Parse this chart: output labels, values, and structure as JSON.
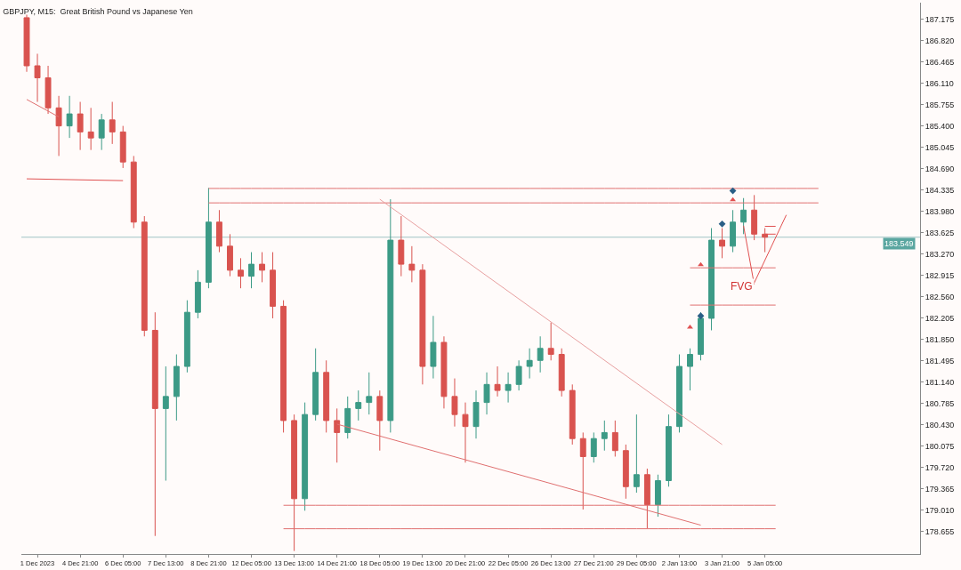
{
  "chart_data": {
    "type": "candlestick",
    "title": "GBPJPY, M15:  Great British Pound vs Japanese Yen",
    "categories": [
      null,
      "1 Dec 2023",
      null,
      null,
      null,
      "4 Dec 21:00",
      null,
      null,
      null,
      "6 Dec 05:00",
      null,
      null,
      null,
      "7 Dec 13:00",
      null,
      null,
      null,
      "8 Dec 21:00",
      null,
      null,
      null,
      "12 Dec 05:00",
      null,
      null,
      null,
      "13 Dec 13:00",
      null,
      null,
      null,
      "14 Dec 21:00",
      null,
      null,
      null,
      "18 Dec 05:00",
      null,
      null,
      null,
      "19 Dec 13:00",
      null,
      null,
      null,
      "20 Dec 21:00",
      null,
      null,
      null,
      "22 Dec 05:00",
      null,
      null,
      null,
      "26 Dec 13:00",
      null,
      null,
      null,
      "27 Dec 21:00",
      null,
      null,
      null,
      "29 Dec 05:00",
      null,
      null,
      null,
      "2 Jan 13:00",
      null,
      null,
      null,
      "3 Jan 21:00",
      null,
      null,
      null,
      "5 Jan 05:00",
      null,
      null,
      null,
      null,
      null,
      null,
      null,
      null,
      null,
      null,
      null,
      null,
      null,
      null
    ],
    "ohlc": [
      [
        187.2,
        187.25,
        186.3,
        186.4
      ],
      [
        186.4,
        186.6,
        185.8,
        186.2
      ],
      [
        186.2,
        186.4,
        185.6,
        185.7
      ],
      [
        185.7,
        185.9,
        184.9,
        185.4
      ],
      [
        185.4,
        185.9,
        185.2,
        185.6
      ],
      [
        185.6,
        185.8,
        185.0,
        185.3
      ],
      [
        185.3,
        185.7,
        185.0,
        185.2
      ],
      [
        185.2,
        185.6,
        185.0,
        185.5
      ],
      [
        185.5,
        185.8,
        185.1,
        185.3
      ],
      [
        185.3,
        185.4,
        184.7,
        184.8
      ],
      [
        184.8,
        184.9,
        183.7,
        183.8
      ],
      [
        183.8,
        183.9,
        181.9,
        182.0
      ],
      [
        182.0,
        182.3,
        178.58,
        180.7
      ],
      [
        180.7,
        181.4,
        179.5,
        180.9
      ],
      [
        180.9,
        181.6,
        180.5,
        181.4
      ],
      [
        181.4,
        182.5,
        181.3,
        182.3
      ],
      [
        182.3,
        183.0,
        182.2,
        182.8
      ],
      [
        182.8,
        184.37,
        182.7,
        183.8
      ],
      [
        183.8,
        184.0,
        183.3,
        183.4
      ],
      [
        183.4,
        183.6,
        182.9,
        183.0
      ],
      [
        183.0,
        183.2,
        182.7,
        182.9
      ],
      [
        182.9,
        183.3,
        182.7,
        183.1
      ],
      [
        183.1,
        183.3,
        182.8,
        183.0
      ],
      [
        183.0,
        183.3,
        182.2,
        182.4
      ],
      [
        182.4,
        182.5,
        180.3,
        180.5
      ],
      [
        180.5,
        180.6,
        178.33,
        179.2
      ],
      [
        179.2,
        180.8,
        179.0,
        180.6
      ],
      [
        180.6,
        181.7,
        180.5,
        181.3
      ],
      [
        181.3,
        181.5,
        180.3,
        180.5
      ],
      [
        180.5,
        180.7,
        179.8,
        180.3
      ],
      [
        180.3,
        180.9,
        180.2,
        180.7
      ],
      [
        180.7,
        181.0,
        180.5,
        180.8
      ],
      [
        180.8,
        181.3,
        180.6,
        180.9
      ],
      [
        180.9,
        181.0,
        180.0,
        180.5
      ],
      [
        180.5,
        184.18,
        180.3,
        183.5
      ],
      [
        183.5,
        183.9,
        182.9,
        183.1
      ],
      [
        183.1,
        183.4,
        182.8,
        183.0
      ],
      [
        183.0,
        183.1,
        181.1,
        181.4
      ],
      [
        181.4,
        182.24,
        181.2,
        181.8
      ],
      [
        181.8,
        181.9,
        180.7,
        180.9
      ],
      [
        180.9,
        181.2,
        180.4,
        180.6
      ],
      [
        180.6,
        180.8,
        179.8,
        180.4
      ],
      [
        180.4,
        181.0,
        180.2,
        180.8
      ],
      [
        180.8,
        181.3,
        180.6,
        181.1
      ],
      [
        181.1,
        181.4,
        180.9,
        181.0
      ],
      [
        181.0,
        181.3,
        180.8,
        181.1
      ],
      [
        181.1,
        181.5,
        181.0,
        181.4
      ],
      [
        181.4,
        181.7,
        181.2,
        181.5
      ],
      [
        181.5,
        181.9,
        181.3,
        181.7
      ],
      [
        181.7,
        182.13,
        181.5,
        181.6
      ],
      [
        181.6,
        181.7,
        180.9,
        181.0
      ],
      [
        181.0,
        181.1,
        180.1,
        180.2
      ],
      [
        180.2,
        180.3,
        179.02,
        179.9
      ],
      [
        179.9,
        180.3,
        179.8,
        180.2
      ],
      [
        180.2,
        180.5,
        180.0,
        180.3
      ],
      [
        180.3,
        180.5,
        179.9,
        180.0
      ],
      [
        180.0,
        180.1,
        179.2,
        179.4
      ],
      [
        179.4,
        180.6,
        179.3,
        179.6
      ],
      [
        179.6,
        179.7,
        178.7,
        179.1
      ],
      [
        179.1,
        179.6,
        178.9,
        179.5
      ],
      [
        179.5,
        180.6,
        179.4,
        180.4
      ],
      [
        180.4,
        181.6,
        180.3,
        181.4
      ],
      [
        181.4,
        181.7,
        181.0,
        181.6
      ],
      [
        181.6,
        182.3,
        181.5,
        182.2
      ],
      [
        182.2,
        183.7,
        182.0,
        183.5
      ],
      [
        183.5,
        183.7,
        183.2,
        183.4
      ],
      [
        183.4,
        184.0,
        183.3,
        183.8
      ],
      [
        183.8,
        184.2,
        183.6,
        184.0
      ],
      [
        184.0,
        184.25,
        183.5,
        183.6
      ],
      [
        183.6,
        183.7,
        183.3,
        183.549
      ],
      null,
      null,
      null,
      null,
      null,
      null,
      null,
      null,
      null,
      null,
      null,
      null,
      null,
      null
    ],
    "series": [
      {
        "type": "line",
        "color": "#e07070",
        "values": [
          null,
          null,
          null,
          null,
          null,
          null,
          null,
          null,
          null,
          null,
          null,
          null,
          null,
          null,
          null,
          null,
          null,
          184.36,
          184.36,
          184.36,
          184.36,
          184.36,
          184.36,
          184.36,
          184.36,
          184.36,
          184.36,
          184.36,
          184.36,
          184.36,
          184.36,
          184.36,
          184.36,
          184.36,
          184.36,
          184.36,
          184.36,
          184.36,
          184.36,
          184.36,
          184.36,
          184.36,
          184.36,
          184.36,
          184.36,
          184.36,
          184.36,
          184.36,
          184.36,
          184.36,
          184.36,
          184.36,
          184.36,
          184.36,
          184.36,
          184.36,
          184.36,
          184.36,
          184.36,
          184.36,
          184.36,
          184.36,
          184.36,
          184.36,
          184.36,
          184.36,
          184.36,
          184.36,
          184.36,
          184.36,
          184.36,
          184.36,
          184.36,
          184.36,
          184.36,
          null,
          null,
          null,
          null,
          null,
          null,
          null,
          null,
          null
        ]
      },
      {
        "type": "line",
        "color": "#e07070",
        "values": [
          null,
          null,
          null,
          null,
          null,
          null,
          null,
          null,
          null,
          null,
          null,
          null,
          null,
          null,
          null,
          null,
          null,
          184.12,
          184.12,
          184.12,
          184.12,
          184.12,
          184.12,
          184.12,
          184.12,
          184.12,
          184.12,
          184.12,
          184.12,
          184.12,
          184.12,
          184.12,
          184.12,
          184.12,
          184.12,
          184.12,
          184.12,
          184.12,
          184.12,
          184.12,
          184.12,
          184.12,
          184.12,
          184.12,
          184.12,
          184.12,
          184.12,
          184.12,
          184.12,
          184.12,
          184.12,
          184.12,
          184.12,
          184.12,
          184.12,
          184.12,
          184.12,
          184.12,
          184.12,
          184.12,
          184.12,
          184.12,
          184.12,
          184.12,
          184.12,
          184.12,
          184.12,
          184.12,
          184.12,
          184.12,
          184.12,
          184.12,
          184.12,
          184.12,
          184.12,
          null,
          null,
          null,
          null,
          null,
          null,
          null,
          null,
          null
        ]
      },
      {
        "type": "line",
        "color": "#e07070",
        "values": [
          null,
          null,
          null,
          null,
          null,
          null,
          null,
          null,
          null,
          null,
          null,
          null,
          null,
          null,
          null,
          null,
          null,
          null,
          null,
          null,
          null,
          null,
          null,
          null,
          179.09,
          179.09,
          179.09,
          179.09,
          179.09,
          179.09,
          179.09,
          179.09,
          179.09,
          179.09,
          179.09,
          179.09,
          179.09,
          179.09,
          179.09,
          179.09,
          179.09,
          179.09,
          179.09,
          179.09,
          179.09,
          179.09,
          179.09,
          179.09,
          179.09,
          179.09,
          179.09,
          179.09,
          179.09,
          179.09,
          179.09,
          179.09,
          179.09,
          179.09,
          179.09,
          179.09,
          179.09,
          179.09,
          179.09,
          179.09,
          179.09,
          179.09,
          179.09,
          179.09,
          179.09,
          179.09,
          179.09,
          null,
          null,
          null,
          null,
          null,
          null,
          null,
          null,
          null,
          null,
          null,
          null,
          null
        ]
      },
      {
        "type": "line",
        "color": "#e07070",
        "values": [
          null,
          null,
          null,
          null,
          null,
          null,
          null,
          null,
          null,
          null,
          null,
          null,
          null,
          null,
          null,
          null,
          null,
          null,
          null,
          null,
          null,
          null,
          null,
          null,
          178.7,
          178.7,
          178.7,
          178.7,
          178.7,
          178.7,
          178.7,
          178.7,
          178.7,
          178.7,
          178.7,
          178.7,
          178.7,
          178.7,
          178.7,
          178.7,
          178.7,
          178.7,
          178.7,
          178.7,
          178.7,
          178.7,
          178.7,
          178.7,
          178.7,
          178.7,
          178.7,
          178.7,
          178.7,
          178.7,
          178.7,
          178.7,
          178.7,
          178.7,
          178.7,
          178.7,
          178.7,
          178.7,
          178.7,
          178.7,
          178.7,
          178.7,
          178.7,
          178.7,
          178.7,
          178.7,
          178.7,
          null,
          null,
          null,
          null,
          null,
          null,
          null,
          null,
          null,
          null,
          null,
          null,
          null
        ]
      },
      {
        "type": "line",
        "color": "#e07070",
        "values": [
          null,
          null,
          null,
          null,
          null,
          null,
          null,
          null,
          null,
          null,
          null,
          null,
          null,
          null,
          null,
          null,
          null,
          null,
          null,
          null,
          null,
          null,
          null,
          null,
          null,
          null,
          null,
          null,
          null,
          null,
          null,
          null,
          null,
          null,
          null,
          null,
          null,
          null,
          null,
          null,
          null,
          null,
          null,
          null,
          null,
          null,
          null,
          null,
          null,
          null,
          null,
          null,
          null,
          null,
          null,
          null,
          null,
          null,
          null,
          null,
          null,
          null,
          183.04,
          183.04,
          183.04,
          183.04,
          183.04,
          183.04,
          183.04,
          183.04,
          183.04,
          null,
          null,
          null,
          null,
          null,
          null,
          null,
          null,
          null,
          null,
          null,
          null,
          null
        ]
      },
      {
        "type": "line",
        "color": "#e07070",
        "values": [
          null,
          null,
          null,
          null,
          null,
          null,
          null,
          null,
          null,
          null,
          null,
          null,
          null,
          null,
          null,
          null,
          null,
          null,
          null,
          null,
          null,
          null,
          null,
          null,
          null,
          null,
          null,
          null,
          null,
          null,
          null,
          null,
          null,
          null,
          null,
          null,
          null,
          null,
          null,
          null,
          null,
          null,
          null,
          null,
          null,
          null,
          null,
          null,
          null,
          null,
          null,
          null,
          null,
          null,
          null,
          null,
          null,
          null,
          null,
          null,
          null,
          null,
          182.42,
          182.42,
          182.42,
          182.42,
          182.42,
          182.42,
          182.42,
          182.42,
          182.42,
          null,
          null,
          null,
          null,
          null,
          null,
          null,
          null,
          null,
          null,
          null,
          null,
          null
        ]
      },
      {
        "type": "line",
        "color": "#e8a0a0",
        "values": [
          null,
          null,
          null,
          null,
          null,
          null,
          null,
          null,
          null,
          null,
          null,
          null,
          null,
          null,
          null,
          null,
          null,
          null,
          null,
          null,
          null,
          null,
          null,
          null,
          null,
          null,
          null,
          null,
          null,
          null,
          null,
          null,
          null,
          184.18,
          null,
          null,
          null,
          null,
          null,
          null,
          null,
          null,
          null,
          null,
          null,
          null,
          null,
          null,
          null,
          null,
          null,
          null,
          null,
          null,
          null,
          null,
          null,
          null,
          null,
          null,
          null,
          null,
          null,
          null,
          null,
          180.1,
          null,
          null,
          null,
          null,
          null,
          null,
          null,
          null,
          null,
          null,
          null,
          null,
          null,
          null,
          null,
          null,
          null,
          null
        ]
      },
      {
        "type": "line",
        "color": "#e07070",
        "values": [
          null,
          null,
          null,
          null,
          null,
          null,
          null,
          null,
          null,
          null,
          null,
          null,
          null,
          null,
          null,
          null,
          null,
          null,
          null,
          null,
          null,
          null,
          null,
          null,
          null,
          null,
          null,
          null,
          null,
          180.44,
          null,
          null,
          null,
          null,
          null,
          null,
          null,
          null,
          null,
          null,
          null,
          null,
          null,
          null,
          null,
          null,
          null,
          null,
          null,
          null,
          null,
          null,
          null,
          null,
          null,
          null,
          null,
          null,
          null,
          null,
          null,
          null,
          null,
          178.76,
          null,
          null,
          null,
          null,
          null,
          null,
          null,
          null,
          null,
          null,
          null,
          null,
          null,
          null,
          null,
          null,
          null,
          null,
          null,
          null
        ]
      },
      {
        "type": "line",
        "color": "#e07070",
        "values": [
          185.84,
          null,
          null,
          185.55,
          null,
          null,
          null,
          null,
          null,
          null,
          null,
          null,
          null,
          null,
          null,
          null,
          null,
          null,
          null,
          null,
          null,
          null,
          null,
          null,
          null,
          null,
          null,
          null,
          null,
          null,
          null,
          null,
          null,
          null,
          null,
          null,
          null,
          null,
          null,
          null,
          null,
          null,
          null,
          null,
          null,
          null,
          null,
          null,
          null,
          null,
          null,
          null,
          null,
          null,
          null,
          null,
          null,
          null,
          null,
          null,
          null,
          null,
          null,
          null,
          null,
          null,
          null,
          null,
          null,
          null,
          null,
          null,
          null,
          null,
          null,
          null,
          null,
          null,
          null,
          null,
          null,
          null,
          null,
          null
        ]
      },
      {
        "type": "line",
        "color": "#e05050",
        "values": [
          184.52,
          null,
          null,
          null,
          null,
          null,
          null,
          null,
          null,
          184.49,
          null,
          null,
          null,
          null,
          null,
          null,
          null,
          null,
          null,
          null,
          null,
          null,
          null,
          null,
          null,
          null,
          null,
          null,
          null,
          null,
          null,
          null,
          null,
          null,
          null,
          null,
          null,
          null,
          null,
          null,
          null,
          null,
          null,
          null,
          null,
          null,
          null,
          null,
          null,
          null,
          null,
          null,
          null,
          null,
          null,
          null,
          null,
          null,
          null,
          null,
          null,
          null,
          null,
          null,
          null,
          null,
          null,
          null,
          null,
          null,
          null,
          null,
          null,
          null,
          null,
          null,
          null,
          null,
          null,
          null,
          null,
          null,
          null,
          null
        ]
      },
      {
        "type": "line",
        "color": "#e05050",
        "values": [
          null,
          null,
          null,
          null,
          null,
          null,
          null,
          null,
          null,
          null,
          null,
          null,
          null,
          null,
          null,
          null,
          null,
          null,
          null,
          null,
          null,
          null,
          null,
          null,
          null,
          null,
          null,
          null,
          null,
          null,
          null,
          null,
          null,
          null,
          null,
          null,
          null,
          null,
          null,
          null,
          null,
          null,
          null,
          null,
          null,
          null,
          null,
          null,
          null,
          null,
          null,
          null,
          null,
          null,
          null,
          null,
          null,
          null,
          null,
          null,
          null,
          null,
          null,
          null,
          null,
          null,
          null,
          183.74,
          182.76,
          null,
          null,
          null,
          null,
          null,
          null,
          null,
          null,
          null,
          null,
          null,
          null,
          null,
          null,
          null
        ]
      },
      {
        "type": "line",
        "color": "#e05050",
        "values": [
          null,
          null,
          null,
          null,
          null,
          null,
          null,
          null,
          null,
          null,
          null,
          null,
          null,
          null,
          null,
          null,
          null,
          null,
          null,
          null,
          null,
          null,
          null,
          null,
          null,
          null,
          null,
          null,
          null,
          null,
          null,
          null,
          null,
          null,
          null,
          null,
          null,
          null,
          null,
          null,
          null,
          null,
          null,
          null,
          null,
          null,
          null,
          null,
          null,
          null,
          null,
          null,
          null,
          null,
          null,
          null,
          null,
          null,
          null,
          null,
          null,
          null,
          null,
          null,
          null,
          null,
          null,
          null,
          182.79,
          null,
          null,
          183.92,
          null,
          null,
          null,
          null,
          null,
          null,
          null,
          null,
          null,
          null,
          null,
          null
        ]
      },
      {
        "type": "line",
        "color": "#e05050",
        "values": [
          null,
          null,
          null,
          null,
          null,
          null,
          null,
          null,
          null,
          null,
          null,
          null,
          null,
          null,
          null,
          null,
          null,
          null,
          null,
          null,
          null,
          null,
          null,
          null,
          null,
          null,
          null,
          null,
          null,
          null,
          null,
          null,
          null,
          null,
          null,
          null,
          null,
          null,
          null,
          null,
          null,
          null,
          null,
          null,
          null,
          null,
          null,
          null,
          null,
          null,
          null,
          null,
          null,
          null,
          null,
          null,
          null,
          null,
          null,
          null,
          null,
          null,
          null,
          null,
          null,
          null,
          null,
          null,
          null,
          183.73,
          183.73,
          null,
          null,
          null,
          null,
          null,
          null,
          null,
          null,
          null,
          null,
          null,
          null,
          null
        ]
      },
      {
        "type": "line",
        "color": "#e05050",
        "values": [
          null,
          null,
          null,
          null,
          null,
          null,
          null,
          null,
          null,
          null,
          null,
          null,
          null,
          null,
          null,
          null,
          null,
          null,
          null,
          null,
          null,
          null,
          null,
          null,
          null,
          null,
          null,
          null,
          null,
          null,
          null,
          null,
          null,
          null,
          null,
          null,
          null,
          null,
          null,
          null,
          null,
          null,
          null,
          null,
          null,
          null,
          null,
          null,
          null,
          null,
          null,
          null,
          null,
          null,
          null,
          null,
          null,
          null,
          null,
          null,
          null,
          null,
          null,
          null,
          null,
          null,
          null,
          null,
          null,
          183.6,
          183.6,
          null,
          null,
          null,
          null,
          null,
          null,
          null,
          null,
          null,
          null,
          null,
          null,
          null
        ]
      },
      {
        "type": "scatter",
        "marker": "diamond",
        "color": "#2a5f86",
        "values": [
          null,
          null,
          null,
          null,
          null,
          null,
          null,
          null,
          null,
          null,
          null,
          null,
          null,
          null,
          null,
          null,
          null,
          null,
          null,
          null,
          null,
          null,
          null,
          null,
          null,
          null,
          null,
          null,
          null,
          null,
          null,
          null,
          null,
          null,
          null,
          null,
          null,
          null,
          null,
          null,
          null,
          null,
          null,
          null,
          null,
          null,
          null,
          null,
          null,
          null,
          null,
          null,
          null,
          null,
          null,
          null,
          null,
          null,
          null,
          null,
          null,
          null,
          null,
          182.24,
          null,
          183.77,
          184.32,
          null,
          null,
          null,
          null,
          null,
          null,
          null,
          null,
          null,
          null,
          null,
          null,
          null,
          null,
          null,
          null,
          null
        ]
      },
      {
        "type": "scatter",
        "marker": "triangle",
        "color": "#e05050",
        "values": [
          null,
          null,
          null,
          null,
          null,
          null,
          null,
          null,
          null,
          null,
          null,
          null,
          null,
          null,
          null,
          null,
          null,
          null,
          null,
          null,
          null,
          null,
          null,
          null,
          null,
          null,
          null,
          null,
          null,
          null,
          null,
          null,
          null,
          null,
          null,
          null,
          null,
          null,
          null,
          null,
          null,
          null,
          null,
          null,
          null,
          null,
          null,
          null,
          null,
          null,
          null,
          null,
          null,
          null,
          null,
          null,
          null,
          null,
          null,
          null,
          null,
          null,
          182.05,
          null,
          null,
          null,
          184.17,
          null,
          null,
          null,
          null,
          null,
          null,
          null,
          null,
          null,
          null,
          null,
          null,
          null,
          null,
          null,
          null,
          null
        ]
      },
      {
        "type": "scatter",
        "marker": "triangle",
        "color": "#e05050",
        "values": [
          null,
          null,
          null,
          null,
          null,
          null,
          null,
          null,
          null,
          null,
          null,
          null,
          null,
          null,
          null,
          null,
          null,
          null,
          null,
          null,
          null,
          null,
          null,
          null,
          null,
          null,
          null,
          null,
          null,
          null,
          null,
          null,
          null,
          null,
          null,
          null,
          null,
          null,
          null,
          null,
          null,
          null,
          null,
          null,
          null,
          null,
          null,
          null,
          null,
          null,
          null,
          null,
          null,
          null,
          null,
          null,
          null,
          null,
          null,
          null,
          null,
          null,
          null,
          183.09,
          null,
          null,
          null,
          null,
          null,
          null,
          null,
          null,
          null,
          null,
          null,
          null,
          null,
          null,
          null,
          null,
          null,
          null,
          null,
          null
        ]
      }
    ],
    "annotations": [
      "FVG"
    ],
    "ref_lines": [
      {
        "axis": "y",
        "value": 183.549,
        "label": "183.549",
        "color": "#9fc4c4"
      }
    ],
    "ylim": [
      178.28,
      187.45
    ],
    "yticks": [
      187.175,
      {
        "value": 186.82,
        "label": "186.820"
      },
      186.465,
      {
        "value": 186.11,
        "label": "186.110"
      },
      185.755,
      {
        "value": 185.4,
        "label": "185.400"
      },
      185.045,
      {
        "value": 184.69,
        "label": "184.690"
      },
      184.335,
      {
        "value": 183.98,
        "label": "183.980"
      },
      183.625,
      {
        "value": 183.27,
        "label": "183.270"
      },
      182.915,
      {
        "value": 182.56,
        "label": "182.560"
      },
      182.205,
      {
        "value": 181.85,
        "label": "181.850"
      },
      181.495,
      {
        "value": 181.14,
        "label": "181.140"
      },
      180.785,
      {
        "value": 180.43,
        "label": "180.430"
      },
      180.075,
      {
        "value": 179.72,
        "label": "179.720"
      },
      179.365,
      {
        "value": 179.01,
        "label": "179.010"
      },
      178.655
    ],
    "grid": false
  }
}
